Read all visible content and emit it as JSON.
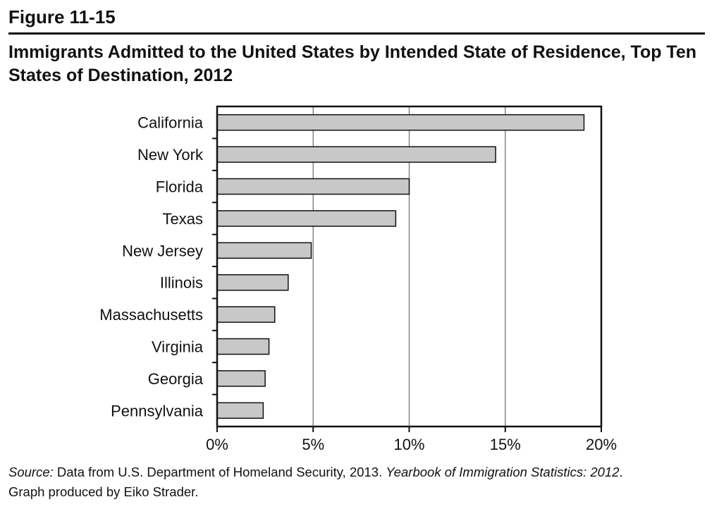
{
  "figure_label": "Figure 11-15",
  "title": "Immigrants Admitted to the United States by Intended State of Residence, Top Ten States of Destination, 2012",
  "source": {
    "prefix": "Source:",
    "text1": " Data from U.S. Department of Homeland Security, 2013. ",
    "italic": "Yearbook of Immigration Statistics: 2012",
    "text2": ".",
    "line2": "Graph produced by Eiko Strader."
  },
  "chart_data": {
    "type": "bar",
    "orientation": "horizontal",
    "categories": [
      "California",
      "New York",
      "Florida",
      "Texas",
      "New Jersey",
      "Illinois",
      "Massachusetts",
      "Virginia",
      "Georgia",
      "Pennsylvania"
    ],
    "values": [
      19.1,
      14.5,
      10.0,
      9.3,
      4.9,
      3.7,
      3.0,
      2.7,
      2.5,
      2.4
    ],
    "xlim": [
      0,
      20
    ],
    "xticks": [
      0,
      5,
      10,
      15,
      20
    ],
    "xtick_labels": [
      "0%",
      "5%",
      "10%",
      "15%",
      "20%"
    ],
    "grid": "vertical",
    "bar_color": "#c8c8c8"
  }
}
